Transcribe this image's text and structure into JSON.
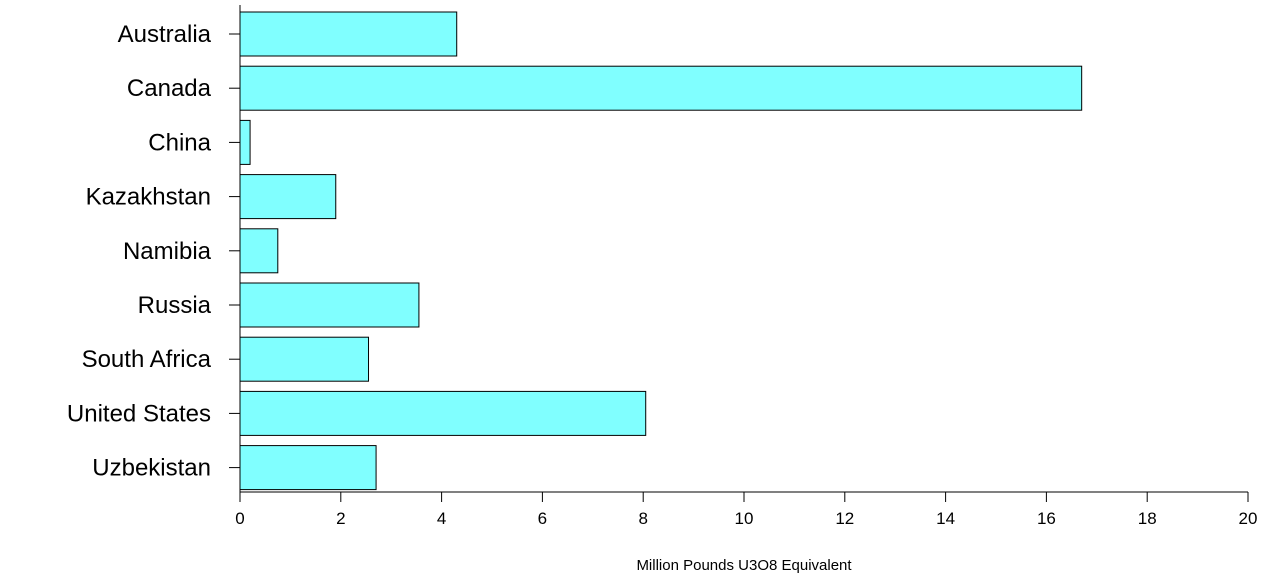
{
  "chart_data": {
    "type": "bar",
    "orientation": "horizontal",
    "categories": [
      "Australia",
      "Canada",
      "China",
      "Kazakhstan",
      "Namibia",
      "Russia",
      "South Africa",
      "United States",
      "Uzbekistan"
    ],
    "values": [
      4.3,
      16.7,
      0.2,
      1.9,
      0.75,
      3.55,
      2.55,
      8.05,
      2.7
    ],
    "title": "",
    "xlabel": "Million Pounds U3O8 Equivalent",
    "ylabel": "",
    "xlim": [
      0,
      20
    ],
    "x_ticks": [
      "0",
      "2",
      "4",
      "6",
      "8",
      "10",
      "12",
      "14",
      "16",
      "18",
      "20"
    ],
    "grid": false,
    "legend": "none",
    "bar_color": "#80ffff",
    "bar_edge_color": "#000000"
  }
}
